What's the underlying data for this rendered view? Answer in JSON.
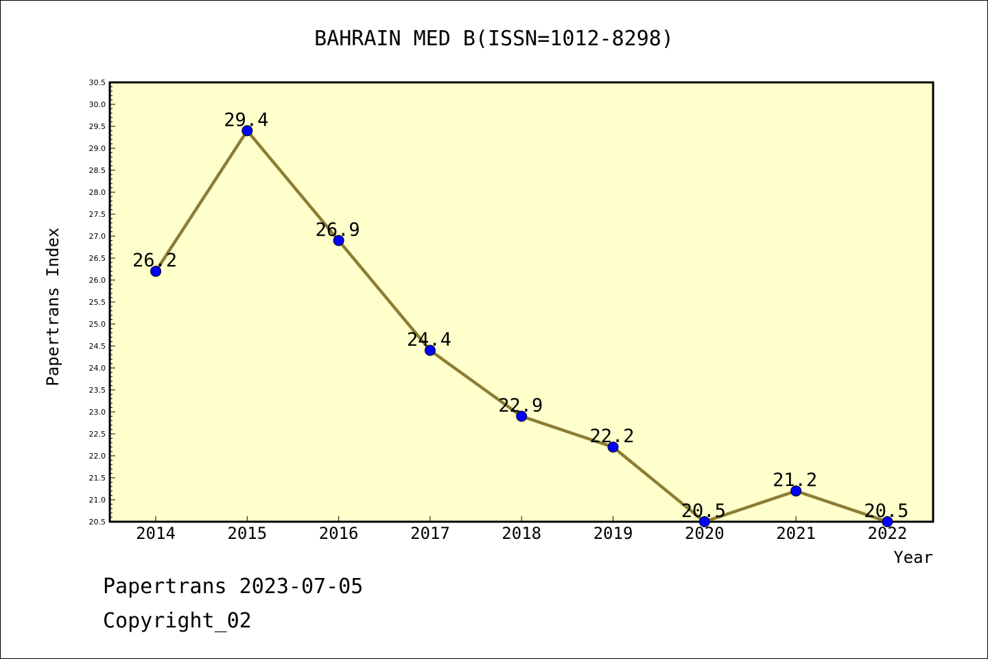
{
  "chart_data": {
    "type": "line",
    "title": "BAHRAIN MED B(ISSN=1012-8298)",
    "xlabel": "Year",
    "ylabel": "Papertrans Index",
    "categories": [
      "2014",
      "2015",
      "2016",
      "2017",
      "2018",
      "2019",
      "2020",
      "2021",
      "2022"
    ],
    "values": [
      26.2,
      29.4,
      26.9,
      24.4,
      22.9,
      22.2,
      20.5,
      21.2,
      20.5
    ],
    "data_labels": [
      "26.2",
      "29.4",
      "26.9",
      "24.4",
      "22.9",
      "22.2",
      "20.5",
      "21.2",
      "20.5"
    ],
    "ylim": [
      20.5,
      30.5
    ],
    "yticks": [
      "20.5",
      "21.0",
      "21.5",
      "22.0",
      "22.5",
      "23.0",
      "23.5",
      "24.0",
      "24.5",
      "25.0",
      "25.5",
      "26.0",
      "26.5",
      "27.0",
      "27.5",
      "28.0",
      "28.5",
      "29.0",
      "29.5",
      "30.0",
      "30.5"
    ],
    "grid": false,
    "colors": {
      "plot_background": "#ffffcc",
      "line": "#8c7d35",
      "marker": "#0000ff"
    }
  },
  "footer": {
    "date_line": "Papertrans 2023-07-05",
    "copyright": "Copyright_02"
  }
}
